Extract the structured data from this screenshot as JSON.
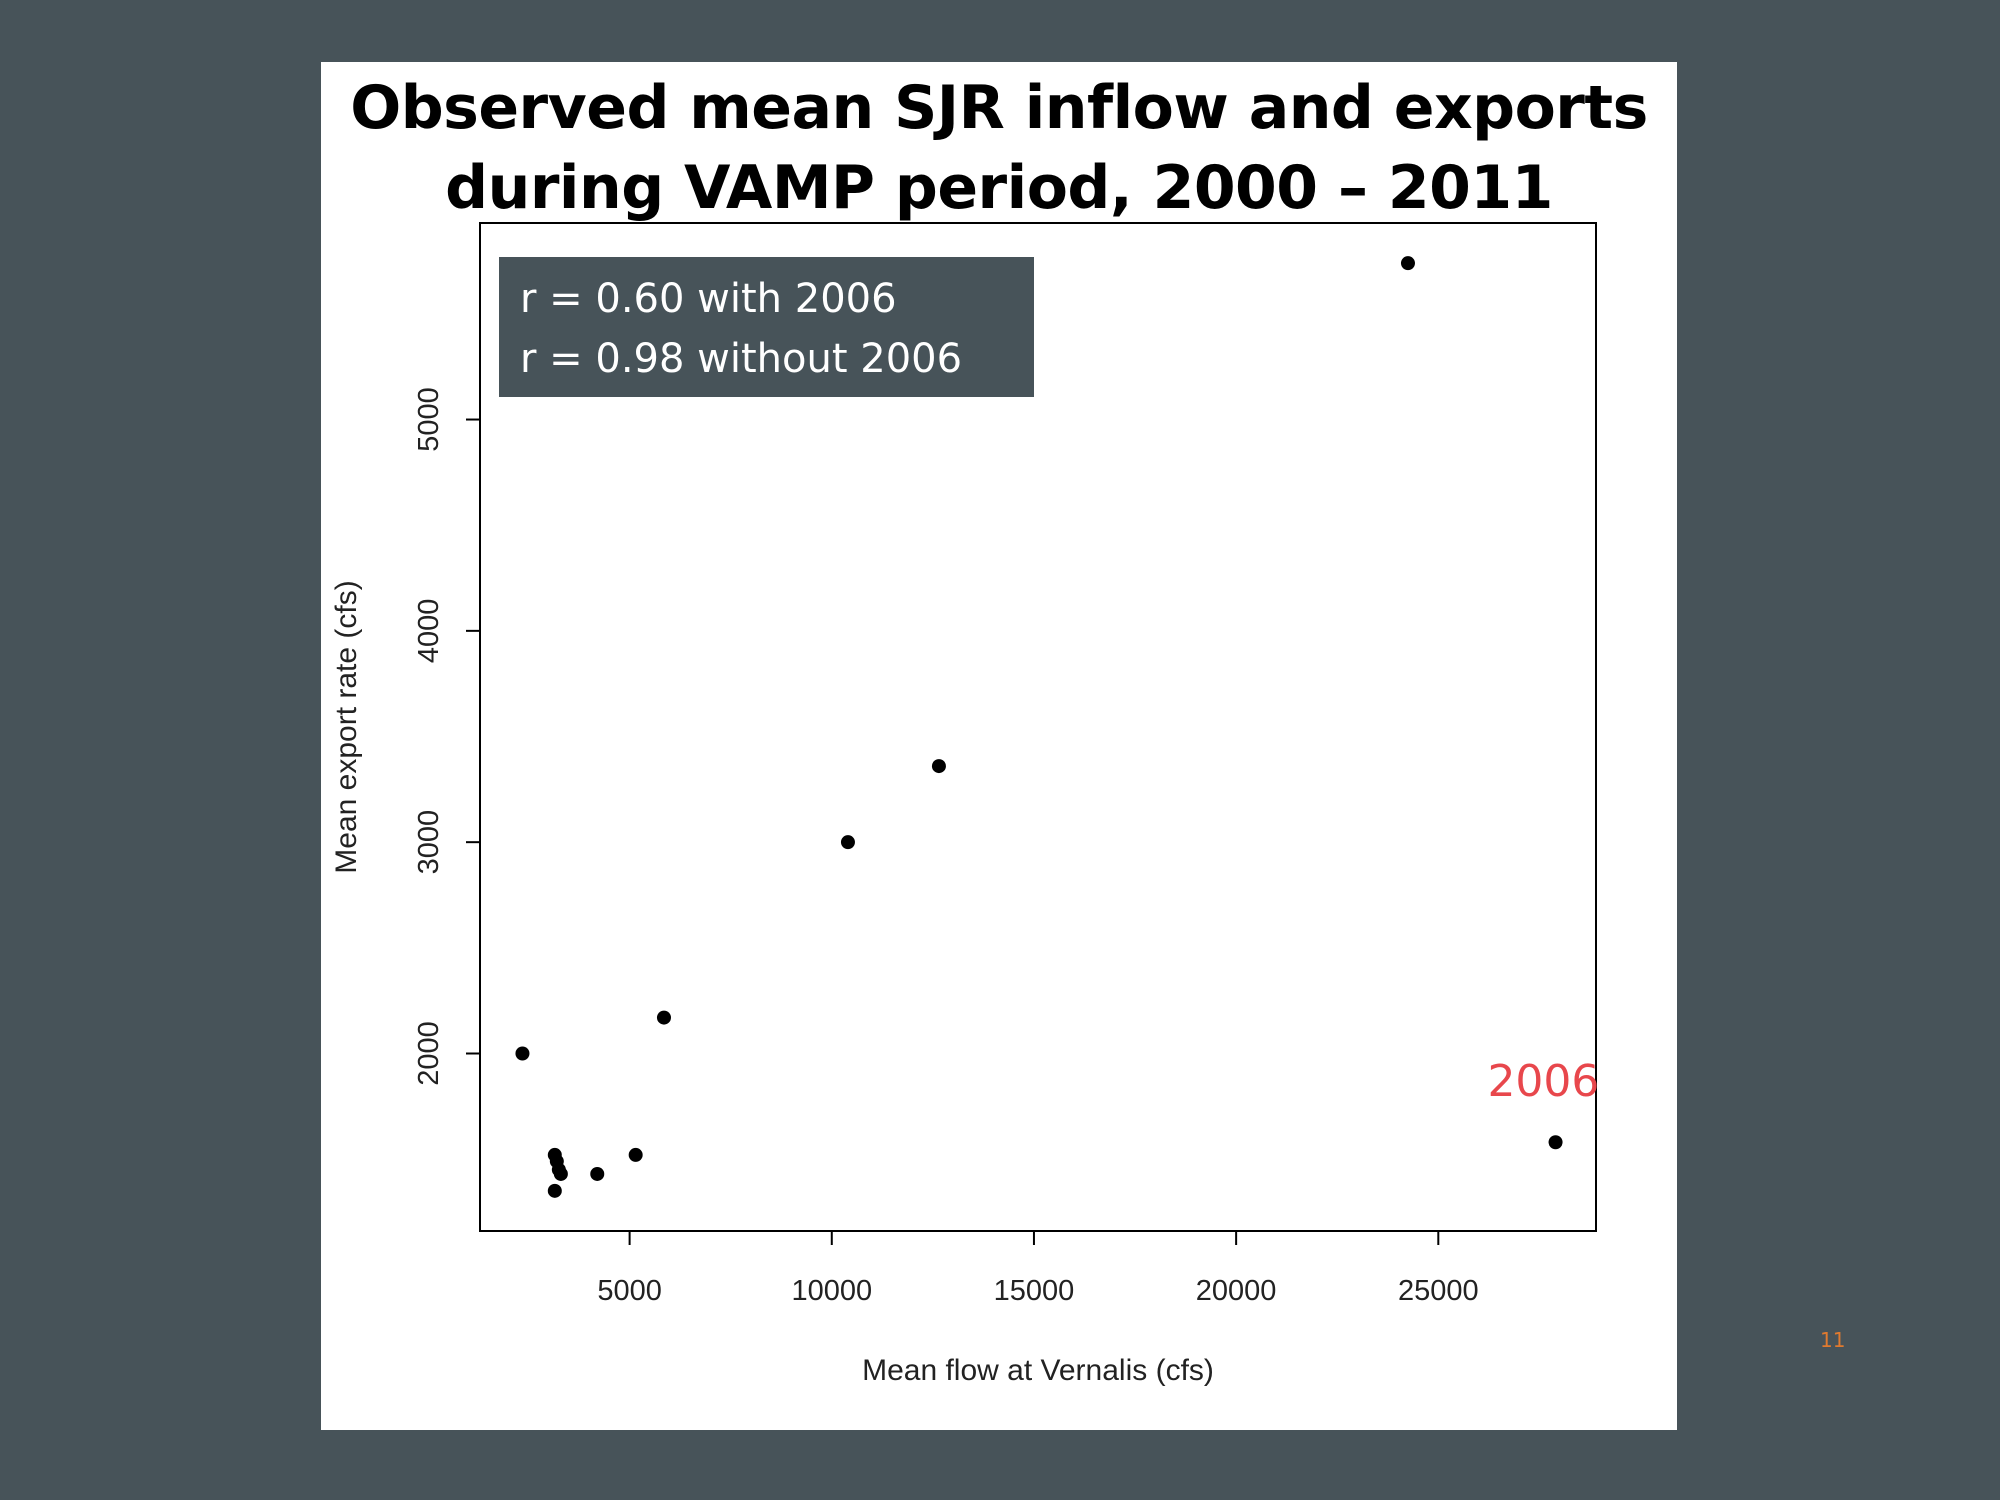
{
  "slide": {
    "title_line1": "Observed mean SJR inflow and exports",
    "title_line2": "during VAMP period, 2000 – 2011",
    "page_number": "11",
    "background_color": "#475359",
    "panel_color": "#ffffff"
  },
  "chart_data": {
    "type": "scatter",
    "title": "Observed mean SJR inflow and exports during VAMP period, 2000 – 2011",
    "xlabel": "Mean flow at Vernalis (cfs)",
    "ylabel": "Mean export rate (cfs)",
    "xlim": [
      1300,
      28900
    ],
    "ylim": [
      1160,
      5930
    ],
    "x_ticks": [
      5000,
      10000,
      15000,
      20000,
      25000
    ],
    "x_tick_labels": [
      "5000",
      "10000",
      "15000",
      "20000",
      "25000"
    ],
    "y_ticks": [
      2000,
      3000,
      4000,
      5000
    ],
    "y_tick_labels": [
      "2000",
      "3000",
      "4000",
      "5000"
    ],
    "grid": false,
    "points": [
      {
        "x": 2350,
        "y": 2000
      },
      {
        "x": 3150,
        "y": 1520
      },
      {
        "x": 3200,
        "y": 1490
      },
      {
        "x": 3250,
        "y": 1450
      },
      {
        "x": 3300,
        "y": 1430
      },
      {
        "x": 3150,
        "y": 1350
      },
      {
        "x": 4200,
        "y": 1430
      },
      {
        "x": 5150,
        "y": 1520
      },
      {
        "x": 5850,
        "y": 2170
      },
      {
        "x": 10400,
        "y": 3000
      },
      {
        "x": 12650,
        "y": 3360
      },
      {
        "x": 24250,
        "y": 5740
      },
      {
        "x": 27900,
        "y": 1580
      }
    ],
    "annotations": [
      {
        "text": "2006",
        "x": 27600,
        "y": 1800,
        "color": "#e8474c"
      }
    ],
    "stats_box": {
      "line1": "r = 0.60 with 2006",
      "line2": "r = 0.98 without 2006",
      "background": "#475359",
      "text_color": "#ffffff"
    }
  }
}
